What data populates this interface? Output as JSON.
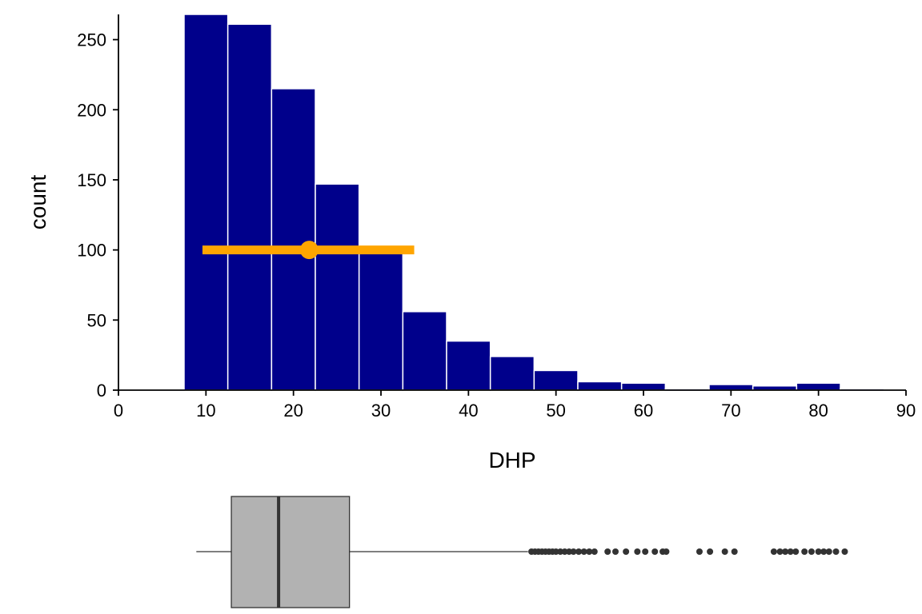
{
  "chart_data": [
    {
      "type": "bar",
      "subtype": "histogram",
      "xlabel": "DHP",
      "ylabel": "count",
      "xlim": [
        0,
        90
      ],
      "ylim": [
        0,
        268
      ],
      "x_ticks": [
        0,
        10,
        20,
        30,
        40,
        50,
        60,
        70,
        80,
        90
      ],
      "y_ticks": [
        0,
        50,
        100,
        150,
        200,
        250
      ],
      "bin_width": 5,
      "bins": [
        {
          "x0": 7.5,
          "x1": 12.5,
          "count": 268
        },
        {
          "x0": 12.5,
          "x1": 17.5,
          "count": 261
        },
        {
          "x0": 17.5,
          "x1": 22.5,
          "count": 215
        },
        {
          "x0": 22.5,
          "x1": 27.5,
          "count": 147
        },
        {
          "x0": 27.5,
          "x1": 32.5,
          "count": 103
        },
        {
          "x0": 32.5,
          "x1": 37.5,
          "count": 56
        },
        {
          "x0": 37.5,
          "x1": 42.5,
          "count": 35
        },
        {
          "x0": 42.5,
          "x1": 47.5,
          "count": 24
        },
        {
          "x0": 47.5,
          "x1": 52.5,
          "count": 14
        },
        {
          "x0": 52.5,
          "x1": 57.5,
          "count": 6
        },
        {
          "x0": 57.5,
          "x1": 62.5,
          "count": 5
        },
        {
          "x0": 62.5,
          "x1": 67.5,
          "count": 1
        },
        {
          "x0": 67.5,
          "x1": 72.5,
          "count": 4
        },
        {
          "x0": 72.5,
          "x1": 77.5,
          "count": 3
        },
        {
          "x0": 77.5,
          "x1": 82.5,
          "count": 5
        },
        {
          "x0": 82.5,
          "x1": 87.5,
          "count": 1
        }
      ],
      "bar_color": "#00008B",
      "bar_edge_color": "#FFFFFF",
      "interval": {
        "point": 21.8,
        "low": 9.6,
        "high": 33.8,
        "y": 100,
        "color": "#FFA500"
      }
    },
    {
      "type": "boxplot",
      "orientation": "horizontal",
      "whisker_low": 8.9,
      "q1": 12.9,
      "median": 18.3,
      "q3": 26.4,
      "whisker_high": 46.8,
      "outliers": [
        47.2,
        47.6,
        48.0,
        48.4,
        48.8,
        49.2,
        49.6,
        50.0,
        50.5,
        51.0,
        51.5,
        52.0,
        52.6,
        53.2,
        53.8,
        54.4,
        55.9,
        56.8,
        58.0,
        59.3,
        60.2,
        61.3,
        62.2,
        62.6,
        66.4,
        67.6,
        69.3,
        70.4,
        74.9,
        75.6,
        76.2,
        76.8,
        77.4,
        78.4,
        79.2,
        80.0,
        80.6,
        81.2,
        82.0,
        83.0
      ],
      "box_fill": "#B2B2B2",
      "line_color": "#333333"
    }
  ]
}
